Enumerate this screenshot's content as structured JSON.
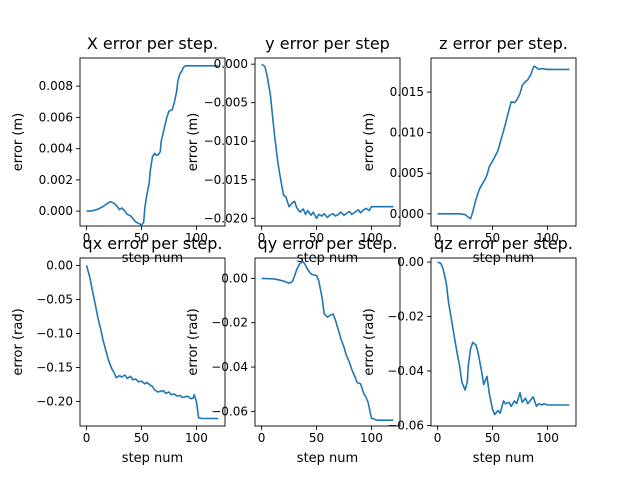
{
  "chart_data": [
    {
      "type": "line",
      "title": "X error per step.",
      "xlabel": "step num",
      "ylabel": "error (m)",
      "xlim": [
        -6,
        126
      ],
      "ylim": [
        -0.00095,
        0.0098
      ],
      "xticks": [
        0,
        50,
        100
      ],
      "yticks": [
        0.0,
        0.002,
        0.004,
        0.006,
        0.008
      ],
      "ytick_labels": [
        "0.000",
        "0.002",
        "0.004",
        "0.006",
        "0.008"
      ],
      "series": [
        {
          "x": [
            0,
            5,
            10,
            15,
            20,
            22,
            25,
            28,
            30,
            32,
            35,
            37,
            40,
            43,
            45,
            48,
            50,
            52,
            53,
            55,
            57,
            58,
            60,
            62,
            63,
            65,
            67,
            68,
            70,
            72,
            73,
            75,
            78,
            80,
            82,
            83,
            85,
            87,
            88,
            90,
            93,
            95,
            100,
            105,
            110,
            115,
            120
          ],
          "y": [
            0.0,
            2e-05,
            0.00012,
            0.0003,
            0.00055,
            0.0006,
            0.0005,
            0.0003,
            0.0001,
            0.0002,
            0.0,
            -0.0002,
            -0.0003,
            -0.00055,
            -0.0007,
            -0.0008,
            -0.0009,
            -0.0007,
            0.0002,
            0.0011,
            0.0018,
            0.0026,
            0.0035,
            0.0037,
            0.0036,
            0.0036,
            0.0038,
            0.0045,
            0.0051,
            0.0057,
            0.006,
            0.0064,
            0.0065,
            0.007,
            0.0077,
            0.0083,
            0.0088,
            0.009,
            0.0092,
            0.0093,
            0.0093,
            0.0093,
            0.0093,
            0.0093,
            0.0093,
            0.0093,
            0.0093
          ]
        }
      ]
    },
    {
      "type": "line",
      "title": "y error per step",
      "xlabel": "step num",
      "ylabel": "error (m)",
      "xlim": [
        -6,
        126
      ],
      "ylim": [
        -0.021,
        0.0008
      ],
      "xticks": [
        0,
        50,
        100
      ],
      "yticks": [
        0.0,
        -0.005,
        -0.01,
        -0.015,
        -0.02
      ],
      "ytick_labels": [
        "0.000",
        "−0.005",
        "−0.010",
        "−0.015",
        "−0.020"
      ],
      "series": [
        {
          "x": [
            0,
            3,
            5,
            8,
            10,
            12,
            15,
            18,
            20,
            22,
            25,
            28,
            30,
            32,
            35,
            38,
            40,
            42,
            45,
            47,
            50,
            52,
            55,
            57,
            60,
            62,
            65,
            67,
            70,
            72,
            75,
            78,
            80,
            82,
            85,
            88,
            90,
            92,
            95,
            98,
            100,
            105,
            110,
            115,
            120
          ],
          "y": [
            0.0,
            -0.0003,
            -0.0015,
            -0.004,
            -0.0068,
            -0.0095,
            -0.013,
            -0.0155,
            -0.017,
            -0.0172,
            -0.0185,
            -0.018,
            -0.0178,
            -0.0186,
            -0.0192,
            -0.0188,
            -0.0195,
            -0.019,
            -0.0196,
            -0.0192,
            -0.02,
            -0.0195,
            -0.0197,
            -0.0194,
            -0.0199,
            -0.0196,
            -0.0194,
            -0.0197,
            -0.0195,
            -0.0192,
            -0.0196,
            -0.0193,
            -0.0191,
            -0.0195,
            -0.0192,
            -0.0189,
            -0.0193,
            -0.019,
            -0.0187,
            -0.019,
            -0.0185,
            -0.0185,
            -0.0185,
            -0.0185,
            -0.0185
          ]
        }
      ]
    },
    {
      "type": "line",
      "title": "z error per step.",
      "xlabel": "step num",
      "ylabel": "error (m)",
      "xlim": [
        -6,
        126
      ],
      "ylim": [
        -0.0015,
        0.0192
      ],
      "xticks": [
        0,
        50,
        100
      ],
      "yticks": [
        0.0,
        0.005,
        0.01,
        0.015
      ],
      "ytick_labels": [
        "0.000",
        "0.005",
        "0.010",
        "0.015"
      ],
      "series": [
        {
          "x": [
            0,
            10,
            20,
            25,
            28,
            30,
            32,
            35,
            38,
            40,
            43,
            45,
            47,
            50,
            52,
            55,
            57,
            60,
            62,
            65,
            67,
            70,
            72,
            75,
            77,
            80,
            82,
            85,
            87,
            88,
            90,
            92,
            95,
            100,
            110,
            120
          ],
          "y": [
            0.0,
            0.0,
            0.0,
            -0.0001,
            -0.0004,
            -0.0006,
            0.0002,
            0.0018,
            0.003,
            0.0035,
            0.0042,
            0.0048,
            0.0058,
            0.0065,
            0.007,
            0.0078,
            0.0088,
            0.0102,
            0.0112,
            0.0128,
            0.0138,
            0.0137,
            0.014,
            0.0148,
            0.0158,
            0.0163,
            0.0165,
            0.0172,
            0.018,
            0.0182,
            0.018,
            0.0178,
            0.0179,
            0.0178,
            0.0178,
            0.0178
          ]
        }
      ]
    },
    {
      "type": "line",
      "title": "qx error per step.",
      "xlabel": "step num",
      "ylabel": "error (rad)",
      "xlim": [
        -6,
        126
      ],
      "ylim": [
        -0.236,
        0.011
      ],
      "xticks": [
        0,
        50,
        100
      ],
      "yticks": [
        0.0,
        -0.05,
        -0.1,
        -0.15,
        -0.2
      ],
      "ytick_labels": [
        "0.00",
        "−0.05",
        "−0.10",
        "−0.15",
        "−0.20"
      ],
      "series": [
        {
          "x": [
            0,
            3,
            5,
            8,
            10,
            13,
            15,
            18,
            20,
            23,
            25,
            27,
            30,
            32,
            35,
            37,
            40,
            42,
            45,
            47,
            50,
            53,
            55,
            58,
            60,
            62,
            65,
            67,
            70,
            72,
            75,
            77,
            80,
            82,
            85,
            87,
            90,
            92,
            95,
            97,
            98,
            100,
            102,
            105,
            110,
            115,
            120
          ],
          "y": [
            0.0,
            -0.018,
            -0.035,
            -0.058,
            -0.075,
            -0.095,
            -0.11,
            -0.128,
            -0.14,
            -0.152,
            -0.158,
            -0.165,
            -0.162,
            -0.164,
            -0.161,
            -0.166,
            -0.163,
            -0.168,
            -0.167,
            -0.171,
            -0.17,
            -0.174,
            -0.172,
            -0.176,
            -0.178,
            -0.183,
            -0.186,
            -0.185,
            -0.184,
            -0.188,
            -0.186,
            -0.19,
            -0.189,
            -0.192,
            -0.191,
            -0.194,
            -0.193,
            -0.192,
            -0.196,
            -0.195,
            -0.19,
            -0.2,
            -0.224,
            -0.225,
            -0.225,
            -0.225,
            -0.225
          ]
        }
      ]
    },
    {
      "type": "line",
      "title": "qy error per step.",
      "xlabel": "step num",
      "ylabel": "error (rad)",
      "xlim": [
        -6,
        126
      ],
      "ylim": [
        -0.0666,
        0.0092
      ],
      "xticks": [
        0,
        50,
        100
      ],
      "yticks": [
        0.0,
        -0.02,
        -0.04,
        -0.06
      ],
      "ytick_labels": [
        "0.00",
        "−0.02",
        "−0.04",
        "−0.06"
      ],
      "series": [
        {
          "x": [
            0,
            10,
            15,
            20,
            25,
            28,
            30,
            32,
            35,
            38,
            40,
            42,
            45,
            48,
            50,
            52,
            55,
            57,
            60,
            62,
            65,
            67,
            70,
            72,
            75,
            77,
            80,
            82,
            85,
            87,
            90,
            93,
            95,
            97,
            100,
            105,
            110,
            115,
            120
          ],
          "y": [
            0.0,
            -0.0002,
            -0.0006,
            -0.0012,
            -0.0022,
            -0.0015,
            0.001,
            0.004,
            0.0068,
            0.0075,
            0.006,
            0.004,
            0.002,
            0.0015,
            0.0013,
            -0.001,
            -0.0085,
            -0.016,
            -0.0175,
            -0.0168,
            -0.016,
            -0.0185,
            -0.0235,
            -0.027,
            -0.031,
            -0.0345,
            -0.038,
            -0.041,
            -0.0445,
            -0.047,
            -0.0475,
            -0.052,
            -0.0535,
            -0.056,
            -0.063,
            -0.064,
            -0.064,
            -0.064,
            -0.064
          ]
        }
      ]
    },
    {
      "type": "line",
      "title": "qz error per step.",
      "xlabel": "step num",
      "ylabel": "error (rad)",
      "xlim": [
        -6,
        126
      ],
      "ylim": [
        -0.0602,
        0.0015
      ],
      "xticks": [
        0,
        50,
        100
      ],
      "yticks": [
        0.0,
        -0.02,
        -0.04,
        -0.06
      ],
      "ytick_labels": [
        "0.00",
        "−0.02",
        "−0.04",
        "−0.06"
      ],
      "series": [
        {
          "x": [
            0,
            3,
            5,
            8,
            10,
            13,
            15,
            18,
            20,
            22,
            25,
            27,
            28,
            30,
            32,
            35,
            37,
            40,
            42,
            45,
            47,
            48,
            50,
            52,
            55,
            57,
            60,
            62,
            65,
            67,
            70,
            72,
            75,
            77,
            80,
            82,
            85,
            87,
            90,
            92,
            95,
            97,
            100,
            105,
            110,
            115,
            120
          ],
          "y": [
            0.0,
            -0.0005,
            -0.0025,
            -0.008,
            -0.015,
            -0.022,
            -0.027,
            -0.034,
            -0.038,
            -0.044,
            -0.047,
            -0.044,
            -0.038,
            -0.032,
            -0.0295,
            -0.0305,
            -0.0335,
            -0.04,
            -0.045,
            -0.042,
            -0.048,
            -0.05,
            -0.054,
            -0.056,
            -0.0545,
            -0.0555,
            -0.051,
            -0.052,
            -0.0515,
            -0.053,
            -0.051,
            -0.052,
            -0.048,
            -0.0515,
            -0.05,
            -0.052,
            -0.0505,
            -0.0495,
            -0.053,
            -0.052,
            -0.0525,
            -0.052,
            -0.0525,
            -0.0525,
            -0.0525,
            -0.0525,
            -0.0525
          ]
        }
      ]
    }
  ]
}
